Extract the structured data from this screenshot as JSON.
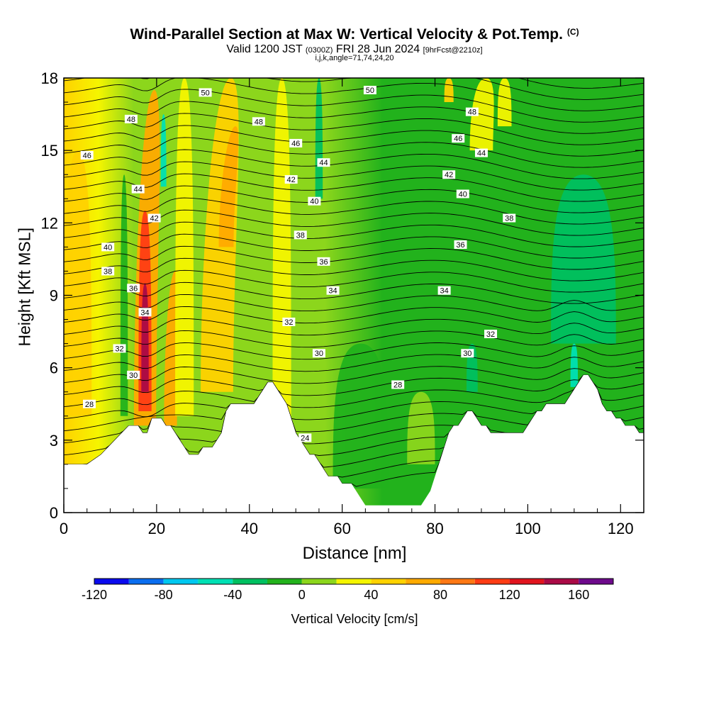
{
  "header": {
    "title": "Wind-Parallel Section at Max W: Vertical Velocity & Pot.Temp.",
    "copyright": "(C)",
    "valid_prefix": "Valid 1200 JST",
    "valid_utc": "(0300Z)",
    "valid_date": "FRI 28 Jun 2024",
    "forecast": "[9hrFcst@2210z]",
    "indices": "i,j,k,angle=71,74,24,20"
  },
  "chart_data": {
    "type": "contour-fill cross-section",
    "title": "Wind-Parallel Section at Max W: Vertical Velocity & Pot.Temp.",
    "xlabel": "Distance [nm]",
    "ylabel": "Height [Kft MSL]",
    "xlim": [
      0,
      125
    ],
    "ylim": [
      0,
      18
    ],
    "x_ticks": [
      "0",
      "20",
      "40",
      "60",
      "80",
      "100",
      "120"
    ],
    "y_ticks": [
      "0",
      "3",
      "6",
      "9",
      "12",
      "15",
      "18"
    ],
    "x_tick_values": [
      0,
      20,
      40,
      60,
      80,
      100,
      120
    ],
    "y_tick_values": [
      0,
      3,
      6,
      9,
      12,
      15,
      18
    ],
    "terrain": {
      "x": [
        0,
        5,
        8,
        10,
        12,
        14,
        15,
        16,
        17,
        18,
        19,
        20,
        21,
        22,
        23,
        24,
        25,
        26,
        27,
        28,
        29,
        30,
        31,
        32,
        33,
        34,
        35,
        36,
        37,
        38,
        39,
        40,
        41,
        42,
        43,
        44,
        45,
        46,
        47,
        48,
        49,
        50,
        51,
        52,
        53,
        54,
        55,
        56,
        57,
        58,
        59,
        60,
        61,
        62,
        63,
        64,
        65,
        66,
        67,
        68,
        69,
        70,
        71,
        72,
        73,
        74,
        75,
        76,
        77,
        78,
        79,
        80,
        81,
        82,
        83,
        84,
        85,
        86,
        87,
        88,
        89,
        90,
        91,
        92,
        93,
        94,
        95,
        96,
        97,
        98,
        99,
        100,
        101,
        102,
        103,
        104,
        105,
        106,
        107,
        108,
        109,
        110,
        111,
        112,
        113,
        114,
        115,
        116,
        117,
        118,
        119,
        120,
        121,
        122,
        123,
        124,
        125
      ],
      "height": [
        2.0,
        2.0,
        2.4,
        2.8,
        3.2,
        3.6,
        3.6,
        3.6,
        3.3,
        3.3,
        3.9,
        3.9,
        3.9,
        3.6,
        3.6,
        3.3,
        3.0,
        2.7,
        2.4,
        2.4,
        2.4,
        2.7,
        2.7,
        2.7,
        3.0,
        3.3,
        4.2,
        4.5,
        4.5,
        4.5,
        4.5,
        4.5,
        4.5,
        4.8,
        5.1,
        5.4,
        5.4,
        5.1,
        4.8,
        4.5,
        3.9,
        3.3,
        3.0,
        2.7,
        2.4,
        2.4,
        2.1,
        1.8,
        1.5,
        1.5,
        1.5,
        1.2,
        1.2,
        1.2,
        0.9,
        0.6,
        0.3,
        0.3,
        0.3,
        0.3,
        0.3,
        0.3,
        0.3,
        0.3,
        0.3,
        0.3,
        0.3,
        0.3,
        0.3,
        0.6,
        0.9,
        1.5,
        2.1,
        2.7,
        3.3,
        3.6,
        3.6,
        3.9,
        4.2,
        4.2,
        3.9,
        3.6,
        3.6,
        3.3,
        3.3,
        3.3,
        3.3,
        3.3,
        3.3,
        3.3,
        3.3,
        3.6,
        3.9,
        4.2,
        4.2,
        4.5,
        4.5,
        4.5,
        4.5,
        4.5,
        4.8,
        5.1,
        5.4,
        5.7,
        5.7,
        5.4,
        5.1,
        4.5,
        4.2,
        4.2,
        3.9,
        3.9,
        3.6,
        3.6,
        3.6,
        3.3,
        3.3
      ]
    },
    "theta_labels": [
      {
        "x": 30.5,
        "y": 17.4,
        "text": "50"
      },
      {
        "x": 66,
        "y": 17.5,
        "text": "50"
      },
      {
        "x": 14.5,
        "y": 16.3,
        "text": "48"
      },
      {
        "x": 42,
        "y": 16.2,
        "text": "48"
      },
      {
        "x": 88,
        "y": 16.6,
        "text": "48"
      },
      {
        "x": 5,
        "y": 14.8,
        "text": "46"
      },
      {
        "x": 50,
        "y": 15.3,
        "text": "46"
      },
      {
        "x": 85,
        "y": 15.5,
        "text": "46"
      },
      {
        "x": 56,
        "y": 14.5,
        "text": "44"
      },
      {
        "x": 90,
        "y": 14.9,
        "text": "44"
      },
      {
        "x": 16,
        "y": 13.4,
        "text": "44"
      },
      {
        "x": 49,
        "y": 13.8,
        "text": "42"
      },
      {
        "x": 83,
        "y": 14.0,
        "text": "42"
      },
      {
        "x": 19.5,
        "y": 12.2,
        "text": "42"
      },
      {
        "x": 54,
        "y": 12.9,
        "text": "40"
      },
      {
        "x": 86,
        "y": 13.2,
        "text": "40"
      },
      {
        "x": 9.5,
        "y": 11.0,
        "text": "40"
      },
      {
        "x": 51,
        "y": 11.5,
        "text": "38"
      },
      {
        "x": 96,
        "y": 12.2,
        "text": "38"
      },
      {
        "x": 9.5,
        "y": 10.0,
        "text": "38"
      },
      {
        "x": 56,
        "y": 10.4,
        "text": "36"
      },
      {
        "x": 85.5,
        "y": 11.1,
        "text": "36"
      },
      {
        "x": 15,
        "y": 9.3,
        "text": "36"
      },
      {
        "x": 58,
        "y": 9.2,
        "text": "34"
      },
      {
        "x": 82,
        "y": 9.2,
        "text": "34"
      },
      {
        "x": 17.5,
        "y": 8.3,
        "text": "34"
      },
      {
        "x": 48.5,
        "y": 7.9,
        "text": "32"
      },
      {
        "x": 92,
        "y": 7.4,
        "text": "32"
      },
      {
        "x": 12,
        "y": 6.8,
        "text": "32"
      },
      {
        "x": 55,
        "y": 6.6,
        "text": "30"
      },
      {
        "x": 87,
        "y": 6.6,
        "text": "30"
      },
      {
        "x": 15,
        "y": 5.7,
        "text": "30"
      },
      {
        "x": 72,
        "y": 5.3,
        "text": "28"
      },
      {
        "x": 5.5,
        "y": 4.5,
        "text": "28"
      },
      {
        "x": 52,
        "y": 3.1,
        "text": "24"
      }
    ],
    "colorbar": {
      "label": "Vertical Velocity [cm/s]",
      "range": [
        -120,
        180
      ],
      "tick_labels": [
        "-120",
        "-80",
        "-40",
        "0",
        "40",
        "80",
        "120",
        "160"
      ],
      "tick_values": [
        -120,
        -80,
        -40,
        0,
        40,
        80,
        120,
        160
      ],
      "colors": [
        "#0a0aee",
        "#0a6ef0",
        "#00c8f0",
        "#00e0b4",
        "#00c060",
        "#22b21c",
        "#8cd61c",
        "#f5f500",
        "#ffd200",
        "#ffaa00",
        "#ff7814",
        "#ff3c14",
        "#e1141e",
        "#aa0a46",
        "#6e0a8c"
      ]
    }
  }
}
